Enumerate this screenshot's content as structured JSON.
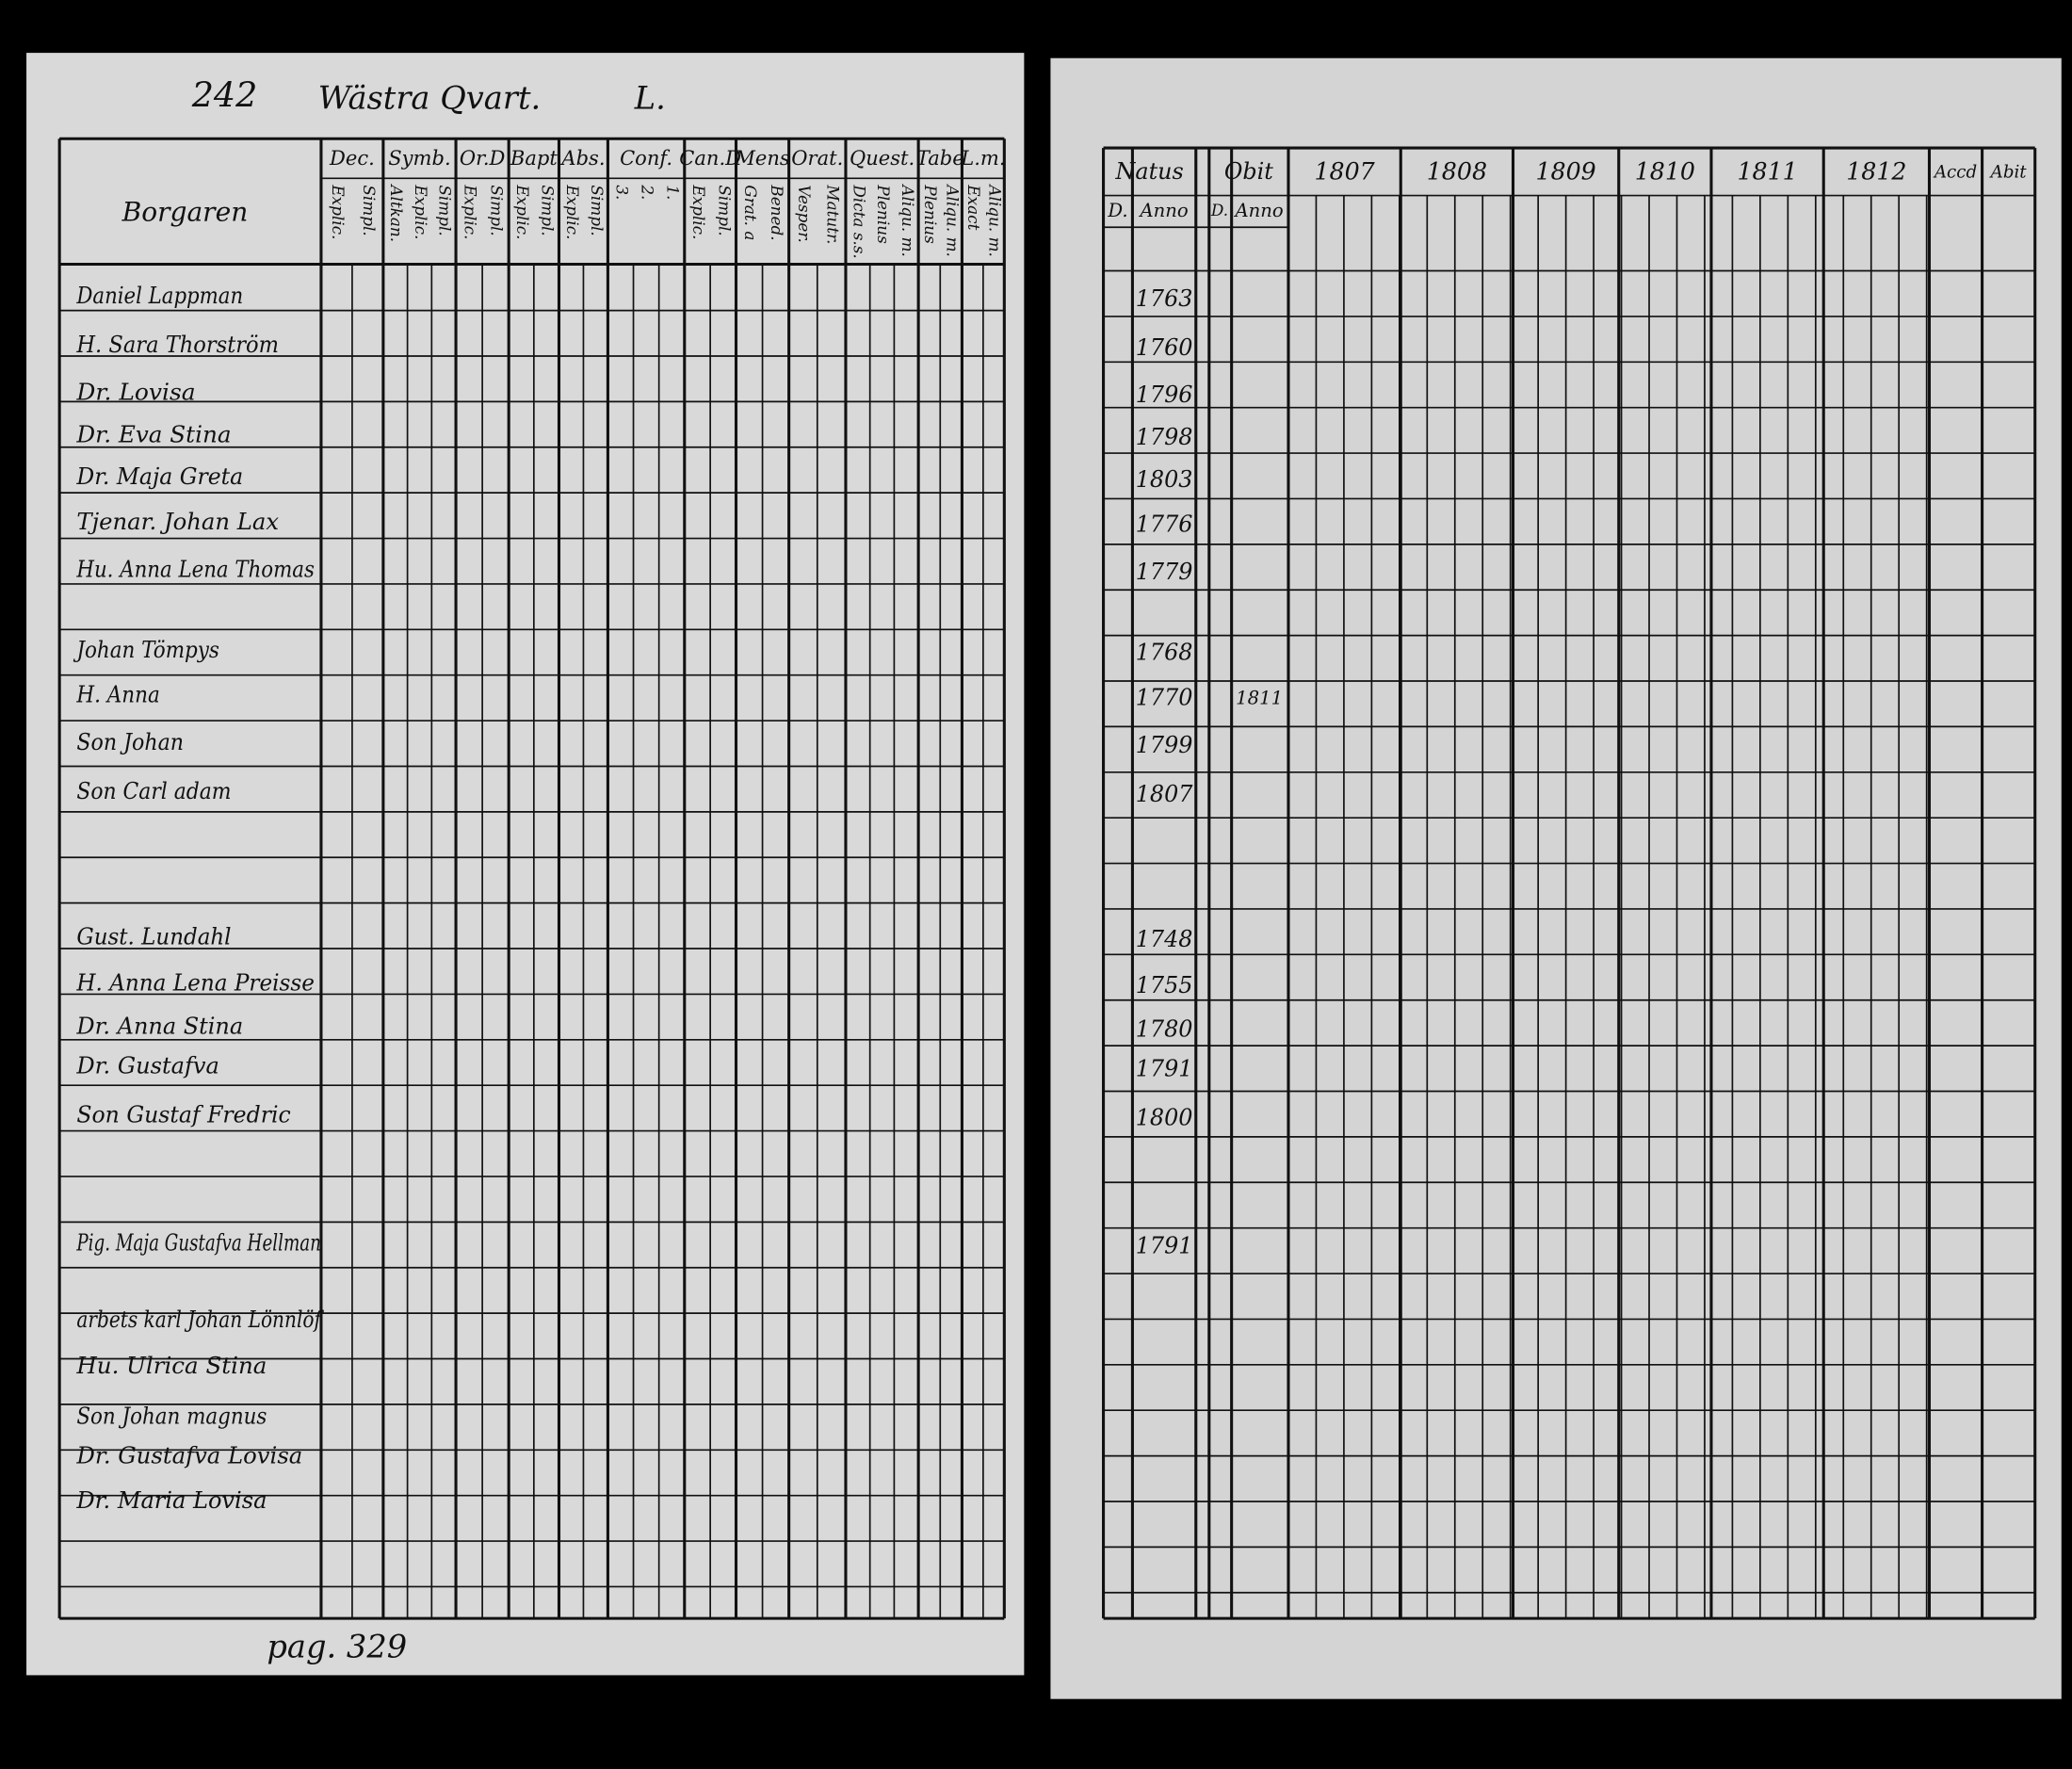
{
  "left_page": {
    "page_number": "242",
    "heading": "Wästra Qvart.",
    "quarter_mark": "L.",
    "estate_heading": "Borgaren",
    "footer": "pag. 329",
    "columns": [
      {
        "head": "Dec.",
        "sub": [
          "Explic.",
          "Simpl."
        ]
      },
      {
        "head": "Symb.",
        "sub": [
          "Altkan.",
          "Explic.",
          "Simpl."
        ]
      },
      {
        "head": "Or.D",
        "sub": [
          "Explic.",
          "Simpl."
        ]
      },
      {
        "head": "Bapt",
        "sub": [
          "Explic.",
          "Simpl."
        ]
      },
      {
        "head": "Abs.",
        "sub": [
          "Explic.",
          "Simpl."
        ]
      },
      {
        "head": "Conf.",
        "sub": [
          "3.",
          "2.",
          "1."
        ]
      },
      {
        "head": "Can.D",
        "sub": [
          "Explic.",
          "Simpl."
        ]
      },
      {
        "head": "Mens",
        "sub": [
          "Grat. a",
          "Bened."
        ]
      },
      {
        "head": "Orat.",
        "sub": [
          "Vesper.",
          "Matutr."
        ]
      },
      {
        "head": "Quest.",
        "sub": [
          "Dicta s.s.",
          "Plenius",
          "Aliqu. m."
        ]
      },
      {
        "head": "Tabe",
        "sub": [
          "Plenius",
          "Aliqu. m."
        ]
      },
      {
        "head": "L.m.",
        "sub": [
          "Exact",
          "Aliqu. m."
        ]
      }
    ]
  },
  "right_page": {
    "natus": "Natus",
    "obit": "Obit",
    "day": "D.",
    "anno": "Anno",
    "years": [
      "1807",
      "1808",
      "1809",
      "1810",
      "1811",
      "1812"
    ],
    "accessit": "Accd",
    "abiit": "Abit"
  },
  "rows": [
    {
      "name": "Daniel Lappman",
      "born": "1763"
    },
    {
      "name": "H. Sara Thorström",
      "born": "1760"
    },
    {
      "name": "Dr. Lovisa",
      "born": "1796"
    },
    {
      "name": "Dr. Eva Stina",
      "born": "1798"
    },
    {
      "name": "Dr. Maja Greta",
      "born": "1803"
    },
    {
      "name": "Tjenar. Johan Lax",
      "born": "1776"
    },
    {
      "name": "Hu. Anna Lena Thomas",
      "born": "1779"
    },
    {
      "name": "Johan Tömpys",
      "born": "1768"
    },
    {
      "name": "H. Anna",
      "born": "1770",
      "died": "1811"
    },
    {
      "name": "Son Johan",
      "born": "1799"
    },
    {
      "name": "Son Carl adam",
      "born": "1807"
    },
    {
      "name": "Gust. Lundahl",
      "born": "1748"
    },
    {
      "name": "H. Anna Lena Preisse",
      "born": "1755"
    },
    {
      "name": "Dr. Anna Stina",
      "born": "1780"
    },
    {
      "name": "Dr. Gustafva",
      "born": "1791"
    },
    {
      "name": "Son Gustaf Fredric",
      "born": "1800"
    },
    {
      "name": "Pig. Maja Gustafva Hellman",
      "born": "1791"
    },
    {
      "name": "arbets karl Johan Lönnlöf"
    },
    {
      "name": "Hu. Ulrica Stina"
    },
    {
      "name": "Son Johan magnus"
    },
    {
      "name": "Dr. Gustafva Lovisa"
    },
    {
      "name": "Dr. Maria Lovisa"
    }
  ]
}
